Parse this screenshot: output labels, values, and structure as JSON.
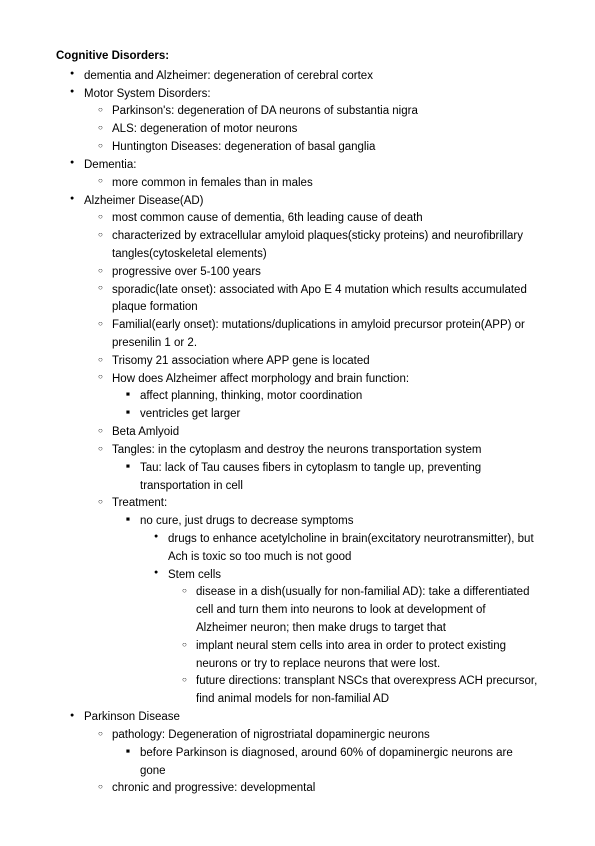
{
  "title": "Cognitive Disorders:",
  "L1": [
    "dementia and Alzheimer: degeneration of cerebral cortex",
    "Motor System Disorders:",
    "Dementia:",
    "Alzheimer Disease(AD)",
    "Parkinson Disease"
  ],
  "motor": [
    "Parkinson's: degeneration of DA neurons of substantia nigra",
    "ALS: degeneration of motor neurons",
    "Huntington Diseases: degeneration of basal ganglia"
  ],
  "dementia": [
    "more common in females than in males"
  ],
  "ad": [
    "most common cause of dementia, 6th leading cause of death",
    "characterized by extracellular amyloid plaques(sticky proteins) and neurofibrillary tangles(cytoskeletal elements)",
    "progressive over 5-100 years",
    "sporadic(late onset): associated with Apo E 4 mutation which results accumulated plaque formation",
    "Familial(early onset): mutations/duplications in amyloid precursor protein(APP) or presenilin 1 or 2.",
    "Trisomy 21 association where APP gene is located",
    "How does Alzheimer affect morphology and brain function:",
    "Beta Amlyoid",
    "Tangles: in the cytoplasm and destroy the neurons transportation system",
    "Treatment:"
  ],
  "morph": [
    "affect planning, thinking, motor coordination",
    "ventricles get larger"
  ],
  "tangles": [
    "Tau: lack of Tau causes fibers in cytoplasm to tangle up, preventing transportation in cell"
  ],
  "treatment": [
    "no cure, just drugs to decrease symptoms"
  ],
  "treat_sub": [
    "drugs to enhance acetylcholine in brain(excitatory neurotransmitter), but Ach is toxic so too much is not good",
    "Stem cells"
  ],
  "stem": [
    "disease in a dish(usually for non-familial AD): take a differentiated cell and turn them into neurons to look at development of Alzheimer neuron; then make drugs to target that",
    "implant neural stem cells into area in order to protect existing neurons or try to replace neurons that were lost.",
    "future directions: transplant NSCs that overexpress ACH precursor, find animal models for non-familial AD"
  ],
  "pd": [
    "pathology: Degeneration of nigrostriatal dopaminergic neurons",
    "chronic and progressive: developmental"
  ],
  "pd_path": [
    "before Parkinson is diagnosed, around 60% of dopaminergic neurons are gone"
  ]
}
